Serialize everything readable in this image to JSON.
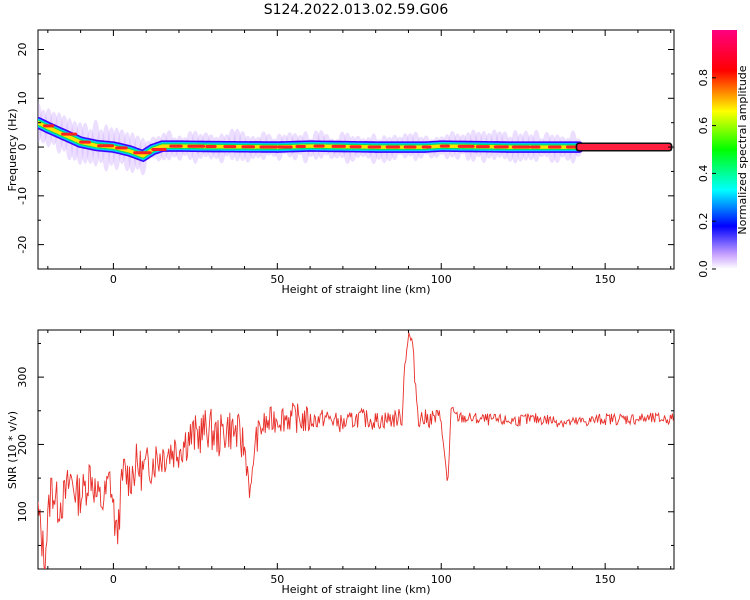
{
  "page": {
    "title": "S124.2022.013.02.59.G06"
  },
  "chart_data": [
    {
      "type": "heatmap",
      "xlabel": "Height of straight line (km)",
      "ylabel": "Frequency (Hz)",
      "xlim": [
        -23,
        171
      ],
      "ylim": [
        -25,
        24
      ],
      "x_ticks": [
        0,
        50,
        100,
        150
      ],
      "x_tick_labels": [
        "0",
        "50",
        "100",
        "150"
      ],
      "y_ticks": [
        20,
        10,
        0,
        -10,
        -20
      ],
      "y_tick_labels": [
        "20",
        "10",
        "0",
        "-10",
        "-20"
      ],
      "ridge": {
        "x": [
          -23,
          -20,
          -15,
          -10,
          -5,
          0,
          5,
          9,
          12,
          15,
          20,
          30,
          50,
          60,
          80,
          95,
          100,
          120,
          140,
          171
        ],
        "frequency_hz": [
          5.0,
          4.0,
          2.5,
          1.0,
          0.3,
          0.0,
          -0.8,
          -1.8,
          -0.5,
          0.2,
          0.2,
          0.1,
          0.0,
          0.2,
          0.0,
          0.0,
          0.2,
          0.0,
          0.0,
          0.0
        ]
      },
      "colorbar": {
        "label": "Normalized spectral amplitude",
        "range": [
          0.0,
          1.0
        ],
        "ticks": [
          0.0,
          0.2,
          0.4,
          0.6,
          0.8
        ],
        "tick_labels": [
          "0.0",
          "0.2",
          "0.4",
          "0.6",
          "0.8"
        ],
        "colormap": [
          "#ffffff",
          "#0000ff",
          "#00ffff",
          "#00ff00",
          "#ffff00",
          "#ff0000",
          "#ff0080"
        ]
      },
      "grid": false
    },
    {
      "type": "line",
      "xlabel": "Height of straight line (km)",
      "ylabel": "SNR (10 * v/v)",
      "xlim": [
        -23,
        171
      ],
      "ylim": [
        15,
        370
      ],
      "x_ticks": [
        0,
        50,
        100,
        150
      ],
      "x_tick_labels": [
        "0",
        "50",
        "100",
        "150"
      ],
      "y_ticks": [
        100,
        200,
        300
      ],
      "y_tick_labels": [
        "100",
        "200",
        "300"
      ],
      "series": [
        {
          "color": "#e8302a",
          "x": [
            -23,
            -21,
            -19,
            -17,
            -15,
            -13,
            -11,
            -9,
            -7,
            -5,
            -3,
            -1,
            1,
            3,
            5,
            7,
            9,
            11,
            13,
            15,
            17,
            20,
            23,
            26,
            29,
            32,
            35,
            38,
            40,
            41,
            42,
            43,
            45,
            50,
            55,
            60,
            65,
            70,
            75,
            80,
            85,
            88,
            89,
            90,
            91,
            92,
            93,
            95,
            100,
            101,
            102,
            103,
            105,
            110,
            120,
            130,
            140,
            150,
            160,
            171
          ],
          "values": [
            100,
            30,
            140,
            110,
            120,
            150,
            125,
            130,
            160,
            120,
            115,
            150,
            60,
            160,
            150,
            170,
            160,
            170,
            180,
            185,
            190,
            195,
            210,
            215,
            225,
            210,
            225,
            215,
            195,
            160,
            120,
            200,
            225,
            240,
            240,
            235,
            240,
            230,
            240,
            235,
            238,
            240,
            330,
            360,
            355,
            300,
            240,
            238,
            240,
            180,
            140,
            250,
            240,
            238,
            235,
            238,
            232,
            238,
            238,
            238
          ]
        }
      ],
      "grid": false
    }
  ]
}
